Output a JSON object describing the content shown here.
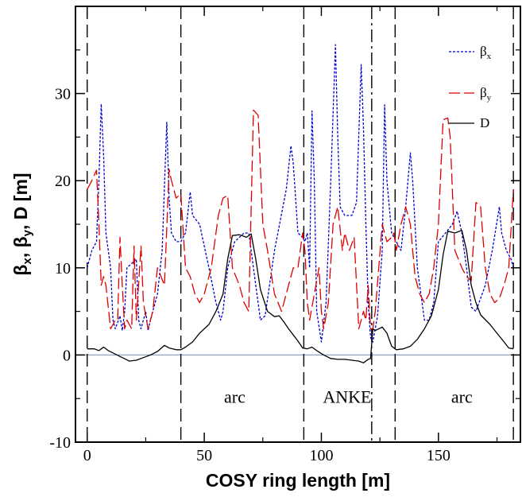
{
  "chart_data": {
    "type": "line",
    "xlabel": "COSY ring length [m]",
    "ylabel": "βx, βy, D [m]",
    "ylabel_parts": {
      "b1": "β",
      "s1": "x",
      "sep1": ", ",
      "b2": "β",
      "s2": "y",
      "rest": ", D [m]"
    },
    "xlim": [
      -5,
      185
    ],
    "ylim": [
      -10,
      40
    ],
    "xticks": [
      0,
      50,
      100,
      150
    ],
    "yticks": [
      -10,
      0,
      10,
      20,
      30
    ],
    "grid": false,
    "legend_position": "top-right",
    "legend": [
      {
        "base": "β",
        "sub": "x"
      },
      {
        "base": "β",
        "sub": "y"
      },
      {
        "base": "D",
        "sub": ""
      }
    ],
    "annotations": [
      {
        "text": "arc",
        "x": 63,
        "y": -5.5
      },
      {
        "text": "ANKE",
        "x": 111,
        "y": -5.5
      },
      {
        "text": "arc",
        "x": 160,
        "y": -5.5
      }
    ],
    "vlines": [
      {
        "x": 0,
        "style": "dash"
      },
      {
        "x": 40,
        "style": "dash"
      },
      {
        "x": 92.5,
        "style": "dash"
      },
      {
        "x": 121.5,
        "style": "dashdot"
      },
      {
        "x": 131.5,
        "style": "dash"
      },
      {
        "x": 182,
        "style": "dash"
      }
    ],
    "zero_line": 0,
    "series": [
      {
        "name": "βx",
        "color": "#0000cc",
        "dash": "3,2",
        "points": [
          [
            0,
            10
          ],
          [
            2,
            12
          ],
          [
            4,
            13
          ],
          [
            5,
            20
          ],
          [
            6,
            28.8
          ],
          [
            7,
            23
          ],
          [
            8,
            14
          ],
          [
            10,
            10
          ],
          [
            11,
            4
          ],
          [
            12,
            3
          ],
          [
            14,
            4.5
          ],
          [
            15,
            2.8
          ],
          [
            16,
            5
          ],
          [
            17,
            10
          ],
          [
            19,
            10.5
          ],
          [
            21,
            11
          ],
          [
            22,
            4
          ],
          [
            23,
            3
          ],
          [
            25,
            5
          ],
          [
            26,
            2.8
          ],
          [
            27,
            4
          ],
          [
            30,
            7
          ],
          [
            32,
            12
          ],
          [
            34,
            26.7
          ],
          [
            35,
            18
          ],
          [
            36,
            14
          ],
          [
            38,
            13
          ],
          [
            40,
            13
          ],
          [
            42,
            14
          ],
          [
            44,
            18.7
          ],
          [
            45,
            16
          ],
          [
            48,
            15
          ],
          [
            52,
            10
          ],
          [
            55,
            6
          ],
          [
            57,
            4
          ],
          [
            58,
            5
          ],
          [
            60,
            10
          ],
          [
            63,
            13
          ],
          [
            67,
            14
          ],
          [
            69,
            14
          ],
          [
            70,
            12
          ],
          [
            72,
            8
          ],
          [
            74,
            4
          ],
          [
            76,
            4.5
          ],
          [
            80,
            12
          ],
          [
            85,
            19
          ],
          [
            87,
            24
          ],
          [
            88,
            22
          ],
          [
            90,
            14
          ],
          [
            92,
            13.5
          ],
          [
            93,
            13
          ],
          [
            94,
            14
          ],
          [
            95,
            10
          ],
          [
            96,
            28
          ],
          [
            97,
            20
          ],
          [
            98,
            5
          ],
          [
            100,
            1.5
          ],
          [
            102,
            6
          ],
          [
            104,
            20
          ],
          [
            106,
            35.6
          ],
          [
            107,
            25
          ],
          [
            108,
            17
          ],
          [
            110,
            16
          ],
          [
            113,
            16
          ],
          [
            115,
            17.5
          ],
          [
            117,
            33.3
          ],
          [
            118,
            26
          ],
          [
            119,
            15
          ],
          [
            120,
            6
          ],
          [
            121,
            2
          ],
          [
            122,
            1.5
          ],
          [
            124,
            4.5
          ],
          [
            126,
            12
          ],
          [
            127,
            28.7
          ],
          [
            128,
            20
          ],
          [
            130,
            14
          ],
          [
            132,
            13
          ],
          [
            134,
            12
          ],
          [
            136,
            17
          ],
          [
            138,
            23.2
          ],
          [
            139,
            20
          ],
          [
            141,
            10
          ],
          [
            144,
            4
          ],
          [
            146,
            4
          ],
          [
            148,
            6
          ],
          [
            150,
            13
          ],
          [
            153,
            14
          ],
          [
            156,
            15
          ],
          [
            158,
            16.5
          ],
          [
            160,
            14
          ],
          [
            162,
            10
          ],
          [
            164,
            5.5
          ],
          [
            166,
            5
          ],
          [
            170,
            8
          ],
          [
            173,
            12
          ],
          [
            176,
            17
          ],
          [
            177,
            14
          ],
          [
            179,
            12
          ],
          [
            181,
            11
          ],
          [
            182,
            10
          ]
        ]
      },
      {
        "name": "βy",
        "color": "#dd0000",
        "dash": "14,5",
        "points": [
          [
            0,
            19
          ],
          [
            2,
            20
          ],
          [
            4,
            21.2
          ],
          [
            5,
            15
          ],
          [
            6,
            8
          ],
          [
            7,
            9
          ],
          [
            8,
            8
          ],
          [
            10,
            3
          ],
          [
            12,
            4
          ],
          [
            13,
            4
          ],
          [
            14,
            13.5
          ],
          [
            15,
            8
          ],
          [
            16,
            3
          ],
          [
            17,
            4
          ],
          [
            19,
            3
          ],
          [
            20,
            12.5
          ],
          [
            21,
            4
          ],
          [
            23,
            12.5
          ],
          [
            24,
            6
          ],
          [
            26,
            3
          ],
          [
            28,
            5
          ],
          [
            30,
            10
          ],
          [
            33,
            8
          ],
          [
            35,
            21.3
          ],
          [
            36,
            20
          ],
          [
            38,
            18
          ],
          [
            40,
            18.5
          ],
          [
            42,
            10
          ],
          [
            44,
            9
          ],
          [
            46,
            7
          ],
          [
            48,
            6
          ],
          [
            50,
            7
          ],
          [
            53,
            10
          ],
          [
            56,
            16
          ],
          [
            58,
            18
          ],
          [
            60,
            18.3
          ],
          [
            62,
            10
          ],
          [
            65,
            8
          ],
          [
            67,
            6
          ],
          [
            69,
            5
          ],
          [
            71,
            28.1
          ],
          [
            73,
            27.5
          ],
          [
            75,
            15
          ],
          [
            77,
            12
          ],
          [
            80,
            7
          ],
          [
            83,
            5
          ],
          [
            86,
            8
          ],
          [
            88,
            10
          ],
          [
            90,
            10
          ],
          [
            92,
            14
          ],
          [
            93,
            12
          ],
          [
            94,
            6
          ],
          [
            95,
            4
          ],
          [
            97,
            7
          ],
          [
            99,
            10
          ],
          [
            100,
            5
          ],
          [
            101,
            3
          ],
          [
            103,
            6
          ],
          [
            105,
            15
          ],
          [
            107,
            17
          ],
          [
            109,
            12
          ],
          [
            110,
            14
          ],
          [
            112,
            12
          ],
          [
            114,
            13.5
          ],
          [
            116,
            3
          ],
          [
            118,
            5
          ],
          [
            119,
            4
          ],
          [
            120,
            8
          ],
          [
            121,
            3
          ],
          [
            122,
            3
          ],
          [
            123,
            5
          ],
          [
            126,
            15
          ],
          [
            128,
            13
          ],
          [
            130,
            13.5
          ],
          [
            131,
            14
          ],
          [
            132,
            12
          ],
          [
            134,
            15
          ],
          [
            136,
            17
          ],
          [
            138,
            15
          ],
          [
            140,
            9
          ],
          [
            142,
            7
          ],
          [
            144,
            6
          ],
          [
            146,
            7
          ],
          [
            148,
            10
          ],
          [
            150,
            15
          ],
          [
            152,
            27
          ],
          [
            154,
            27.2
          ],
          [
            155,
            25
          ],
          [
            157,
            12
          ],
          [
            160,
            10
          ],
          [
            162,
            9
          ],
          [
            164,
            8.5
          ],
          [
            166,
            17.5
          ],
          [
            168,
            17
          ],
          [
            170,
            10
          ],
          [
            172,
            7
          ],
          [
            174,
            6
          ],
          [
            176,
            6.5
          ],
          [
            178,
            8
          ],
          [
            180,
            10
          ],
          [
            182,
            19
          ]
        ]
      },
      {
        "name": "D",
        "color": "#000000",
        "dash": "",
        "points": [
          [
            0,
            0.7
          ],
          [
            3,
            0.7
          ],
          [
            5,
            0.5
          ],
          [
            7,
            0.9
          ],
          [
            9,
            0.5
          ],
          [
            12,
            0.1
          ],
          [
            15,
            -0.3
          ],
          [
            18,
            -0.7
          ],
          [
            21,
            -0.6
          ],
          [
            24,
            -0.3
          ],
          [
            27,
            0
          ],
          [
            30,
            0.4
          ],
          [
            33,
            1.1
          ],
          [
            35,
            0.8
          ],
          [
            38,
            0.6
          ],
          [
            40,
            0.6
          ],
          [
            42,
            0.9
          ],
          [
            45,
            1.5
          ],
          [
            48,
            2.5
          ],
          [
            52,
            3.5
          ],
          [
            55,
            5
          ],
          [
            58,
            7
          ],
          [
            60,
            11
          ],
          [
            62,
            13.7
          ],
          [
            65,
            13.8
          ],
          [
            68,
            13.5
          ],
          [
            70,
            13.9
          ],
          [
            72,
            11
          ],
          [
            74,
            7.5
          ],
          [
            77,
            5
          ],
          [
            80,
            4.4
          ],
          [
            82,
            4.5
          ],
          [
            84,
            3.8
          ],
          [
            86,
            3
          ],
          [
            88,
            2.3
          ],
          [
            90,
            1.6
          ],
          [
            92,
            0.8
          ],
          [
            94,
            0.7
          ],
          [
            96,
            0.9
          ],
          [
            98,
            0.5
          ],
          [
            101,
            0
          ],
          [
            104,
            -0.4
          ],
          [
            107,
            -0.5
          ],
          [
            110,
            -0.5
          ],
          [
            113,
            -0.6
          ],
          [
            116,
            -0.7
          ],
          [
            118,
            -0.9
          ],
          [
            120,
            -0.5
          ],
          [
            121,
            -0.4
          ],
          [
            122,
            3
          ],
          [
            123,
            2.8
          ],
          [
            126,
            3.2
          ],
          [
            128,
            2.5
          ],
          [
            130,
            1
          ],
          [
            132,
            0.6
          ],
          [
            135,
            0.7
          ],
          [
            138,
            1
          ],
          [
            141,
            1.8
          ],
          [
            144,
            3
          ],
          [
            147,
            4.5
          ],
          [
            150,
            7.5
          ],
          [
            152,
            11.5
          ],
          [
            154,
            14.2
          ],
          [
            157,
            14
          ],
          [
            160,
            14.3
          ],
          [
            162,
            12
          ],
          [
            164,
            8
          ],
          [
            166,
            6
          ],
          [
            168,
            4.6
          ],
          [
            172,
            3.5
          ],
          [
            175,
            2.5
          ],
          [
            178,
            1.5
          ],
          [
            180,
            0.8
          ],
          [
            182,
            0.7
          ]
        ]
      }
    ]
  }
}
